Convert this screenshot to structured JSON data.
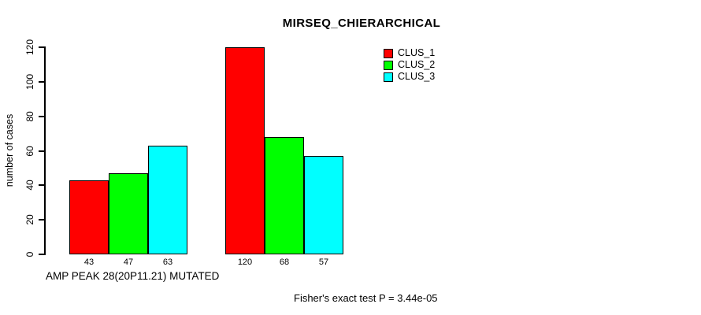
{
  "chart_data": {
    "type": "bar",
    "title": "MIRSEQ_CHIERARCHICAL",
    "ylabel": "number of cases",
    "xlabel": "AMP PEAK 28(20P11.21) MUTATED",
    "categories": [
      "AMP PEAK 28(20P11.21) MUTATED",
      ""
    ],
    "series": [
      {
        "name": "CLUS_1",
        "color": "#ff0000",
        "values": [
          43,
          120
        ]
      },
      {
        "name": "CLUS_2",
        "color": "#00ff00",
        "values": [
          47,
          68
        ]
      },
      {
        "name": "CLUS_3",
        "color": "#00ffff",
        "values": [
          63,
          57
        ]
      }
    ],
    "bar_value_labels": [
      [
        43,
        47,
        63
      ],
      [
        120,
        68,
        57
      ]
    ],
    "ylim": [
      0,
      120
    ],
    "yticks": [
      0,
      20,
      40,
      60,
      80,
      100,
      120
    ],
    "grid": "off",
    "legend_position": "top-right",
    "annotation": "Fisher's exact test P = 3.44e-05"
  },
  "colors": {
    "background": "#ffffff",
    "axis": "#000000",
    "clus_1": "#ff0000",
    "clus_2": "#00ff00",
    "clus_3": "#00ffff"
  }
}
